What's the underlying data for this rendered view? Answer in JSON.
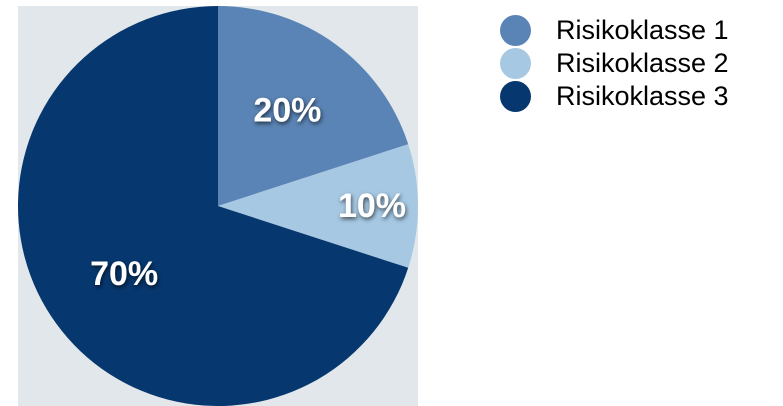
{
  "chart_data": {
    "type": "pie",
    "title": "",
    "categories": [
      "Risikoklasse 1",
      "Risikoklasse 2",
      "Risikoklasse 3"
    ],
    "values": [
      20,
      10,
      70
    ],
    "data_labels": [
      "20%",
      "10%",
      "70%"
    ],
    "colors": [
      "#5a84b5",
      "#a6c8e3",
      "#06376e"
    ],
    "start_angle": "12 o'clock",
    "direction": "clockwise",
    "legend_position": "right-top",
    "panel_background": "#e1e7ea",
    "label_color": "#ffffff"
  }
}
